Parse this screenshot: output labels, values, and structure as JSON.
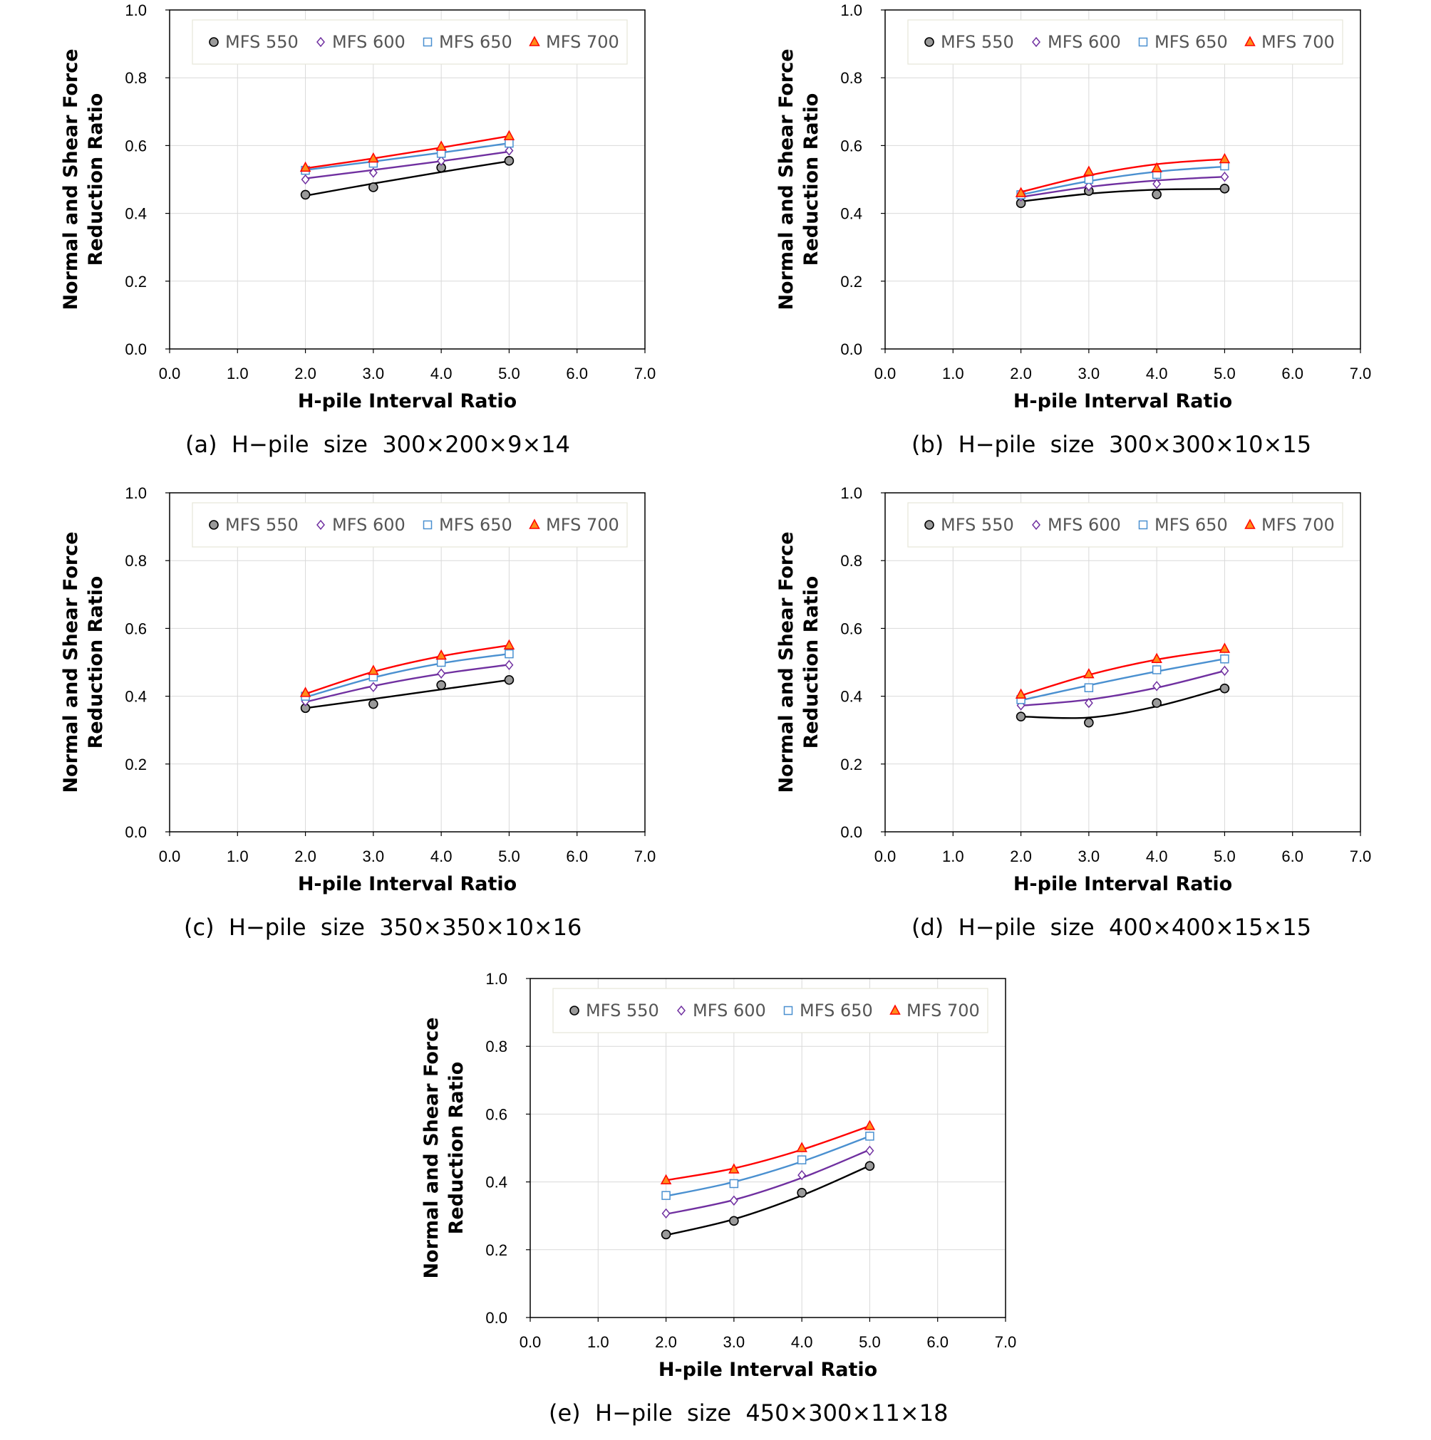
{
  "colors": {
    "MFS 550": "#000000",
    "MFS 600": "#7030a0",
    "MFS 650": "#4a90d0",
    "MFS 700": "#ff0000"
  },
  "chart_data": [
    {
      "type": "scatter",
      "caption": "(a)  H−pile  size  300×200×9×14",
      "xlabel": "H-pile Interval Ratio",
      "ylabel": [
        "Normal and Shear Force",
        "Reduction Ratio"
      ],
      "xlim": [
        0,
        7
      ],
      "ylim": [
        0,
        1
      ],
      "xticks": [
        "0.0",
        "1.0",
        "2.0",
        "3.0",
        "4.0",
        "5.0",
        "6.0",
        "7.0"
      ],
      "yticks": [
        "0.0",
        "0.2",
        "0.4",
        "0.6",
        "0.8",
        "1.0"
      ],
      "legend": [
        "MFS 550",
        "MFS 600",
        "MFS 650",
        "MFS 700"
      ],
      "x": [
        2,
        3,
        4,
        5
      ],
      "series": [
        {
          "name": "MFS 550",
          "values": [
            0.455,
            0.477,
            0.535,
            0.555
          ],
          "trend": [
            0.452,
            0.488,
            0.522,
            0.554
          ]
        },
        {
          "name": "MFS 600",
          "values": [
            0.5,
            0.52,
            0.555,
            0.585
          ],
          "trend": [
            0.503,
            0.528,
            0.554,
            0.582
          ]
        },
        {
          "name": "MFS 650",
          "values": [
            0.527,
            0.548,
            0.577,
            0.607
          ],
          "trend": [
            0.528,
            0.553,
            0.579,
            0.607
          ]
        },
        {
          "name": "MFS 700",
          "values": [
            0.535,
            0.562,
            0.597,
            0.628
          ],
          "trend": [
            0.533,
            0.562,
            0.594,
            0.628
          ]
        }
      ]
    },
    {
      "type": "scatter",
      "caption": "(b)  H−pile  size  300×300×10×15",
      "xlabel": "H-pile Interval Ratio",
      "ylabel": [
        "Normal and Shear Force",
        "Reduction Ratio"
      ],
      "xlim": [
        0,
        7
      ],
      "ylim": [
        0,
        1
      ],
      "xticks": [
        "0.0",
        "1.0",
        "2.0",
        "3.0",
        "4.0",
        "5.0",
        "6.0",
        "7.0"
      ],
      "yticks": [
        "0.0",
        "0.2",
        "0.4",
        "0.6",
        "0.8",
        "1.0"
      ],
      "legend": [
        "MFS 550",
        "MFS 600",
        "MFS 650",
        "MFS 700"
      ],
      "x": [
        2,
        3,
        4,
        5
      ],
      "series": [
        {
          "name": "MFS 550",
          "values": [
            0.43,
            0.466,
            0.456,
            0.473
          ],
          "trend": [
            0.435,
            0.458,
            0.47,
            0.472
          ]
        },
        {
          "name": "MFS 600",
          "values": [
            0.45,
            0.48,
            0.487,
            0.508
          ],
          "trend": [
            0.448,
            0.478,
            0.497,
            0.508
          ]
        },
        {
          "name": "MFS 650",
          "values": [
            0.455,
            0.5,
            0.515,
            0.54
          ],
          "trend": [
            0.455,
            0.495,
            0.523,
            0.538
          ]
        },
        {
          "name": "MFS 700",
          "values": [
            0.46,
            0.523,
            0.533,
            0.56
          ],
          "trend": [
            0.463,
            0.512,
            0.545,
            0.56
          ]
        }
      ]
    },
    {
      "type": "scatter",
      "caption": "(c)  H−pile  size  350×350×10×16",
      "xlabel": "H-pile Interval Ratio",
      "ylabel": [
        "Normal and Shear Force",
        "Reduction Ratio"
      ],
      "xlim": [
        0,
        7
      ],
      "ylim": [
        0,
        1
      ],
      "xticks": [
        "0.0",
        "1.0",
        "2.0",
        "3.0",
        "4.0",
        "5.0",
        "6.0",
        "7.0"
      ],
      "yticks": [
        "0.0",
        "0.2",
        "0.4",
        "0.6",
        "0.8",
        "1.0"
      ],
      "legend": [
        "MFS 550",
        "MFS 600",
        "MFS 650",
        "MFS 700"
      ],
      "x": [
        2,
        3,
        4,
        5
      ],
      "series": [
        {
          "name": "MFS 550",
          "values": [
            0.365,
            0.377,
            0.433,
            0.448
          ],
          "trend": [
            0.365,
            0.392,
            0.42,
            0.448
          ]
        },
        {
          "name": "MFS 600",
          "values": [
            0.385,
            0.427,
            0.467,
            0.492
          ],
          "trend": [
            0.383,
            0.43,
            0.466,
            0.493
          ]
        },
        {
          "name": "MFS 650",
          "values": [
            0.4,
            0.457,
            0.5,
            0.525
          ],
          "trend": [
            0.397,
            0.455,
            0.497,
            0.525
          ]
        },
        {
          "name": "MFS 700",
          "values": [
            0.41,
            0.475,
            0.52,
            0.55
          ],
          "trend": [
            0.407,
            0.472,
            0.518,
            0.55
          ]
        }
      ]
    },
    {
      "type": "scatter",
      "caption": "(d)  H−pile  size  400×400×15×15",
      "xlabel": "H-pile Interval Ratio",
      "ylabel": [
        "Normal and Shear Force",
        "Reduction Ratio"
      ],
      "xlim": [
        0,
        7
      ],
      "ylim": [
        0,
        1
      ],
      "xticks": [
        "0.0",
        "1.0",
        "2.0",
        "3.0",
        "4.0",
        "5.0",
        "6.0",
        "7.0"
      ],
      "yticks": [
        "0.0",
        "0.2",
        "0.4",
        "0.6",
        "0.8",
        "1.0"
      ],
      "legend": [
        "MFS 550",
        "MFS 600",
        "MFS 650",
        "MFS 700"
      ],
      "x": [
        2,
        3,
        4,
        5
      ],
      "series": [
        {
          "name": "MFS 550",
          "values": [
            0.34,
            0.322,
            0.38,
            0.423
          ],
          "trend": [
            0.34,
            0.337,
            0.37,
            0.425
          ]
        },
        {
          "name": "MFS 600",
          "values": [
            0.373,
            0.38,
            0.43,
            0.475
          ],
          "trend": [
            0.372,
            0.39,
            0.425,
            0.475
          ]
        },
        {
          "name": "MFS 650",
          "values": [
            0.39,
            0.425,
            0.478,
            0.51
          ],
          "trend": [
            0.388,
            0.432,
            0.473,
            0.51
          ]
        },
        {
          "name": "MFS 700",
          "values": [
            0.405,
            0.465,
            0.51,
            0.54
          ],
          "trend": [
            0.402,
            0.463,
            0.508,
            0.538
          ]
        }
      ]
    },
    {
      "type": "scatter",
      "caption": "(e)  H−pile  size  450×300×11×18",
      "xlabel": "H-pile Interval Ratio",
      "ylabel": [
        "Normal and Shear Force",
        "Reduction Ratio"
      ],
      "xlim": [
        0,
        7
      ],
      "ylim": [
        0,
        1
      ],
      "xticks": [
        "0.0",
        "1.0",
        "2.0",
        "3.0",
        "4.0",
        "5.0",
        "6.0",
        "7.0"
      ],
      "yticks": [
        "0.0",
        "0.2",
        "0.4",
        "0.6",
        "0.8",
        "1.0"
      ],
      "legend": [
        "MFS 550",
        "MFS 600",
        "MFS 650",
        "MFS 700"
      ],
      "x": [
        2,
        3,
        4,
        5
      ],
      "series": [
        {
          "name": "MFS 550",
          "values": [
            0.245,
            0.285,
            0.368,
            0.447
          ],
          "trend": [
            0.243,
            0.29,
            0.36,
            0.448
          ]
        },
        {
          "name": "MFS 600",
          "values": [
            0.307,
            0.345,
            0.42,
            0.492
          ],
          "trend": [
            0.305,
            0.347,
            0.412,
            0.495
          ]
        },
        {
          "name": "MFS 650",
          "values": [
            0.36,
            0.395,
            0.465,
            0.535
          ],
          "trend": [
            0.358,
            0.4,
            0.46,
            0.535
          ]
        },
        {
          "name": "MFS 700",
          "values": [
            0.405,
            0.437,
            0.5,
            0.565
          ],
          "trend": [
            0.405,
            0.44,
            0.495,
            0.565
          ]
        }
      ]
    }
  ]
}
